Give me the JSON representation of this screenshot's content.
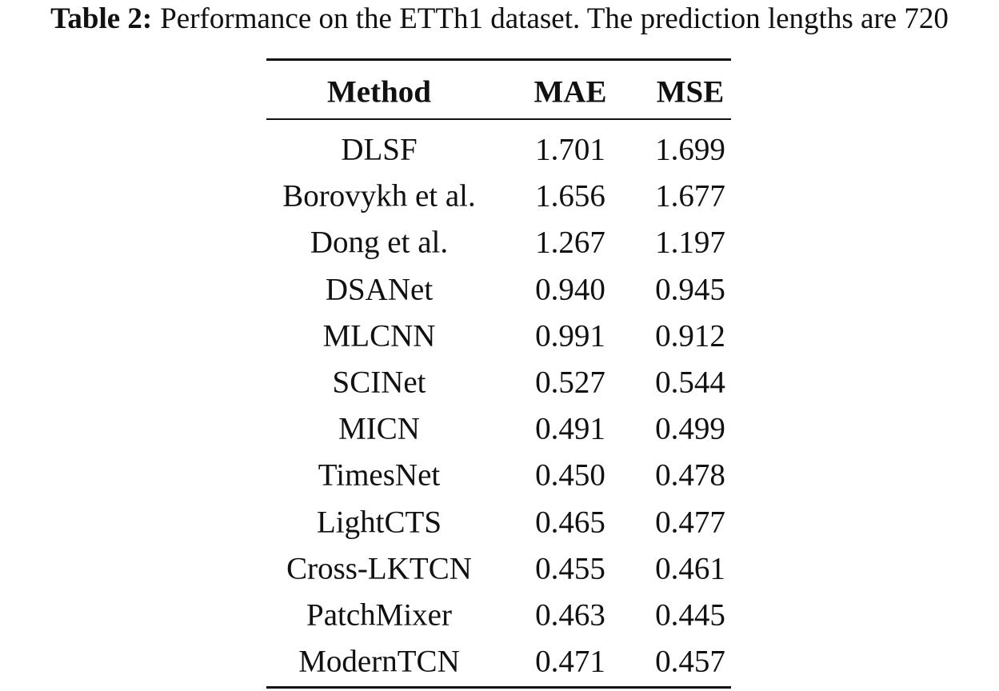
{
  "caption": {
    "label": "Table 2:",
    "text": "Performance on the ETTh1 dataset. The prediction lengths are 720"
  },
  "table": {
    "header": [
      "Method",
      "MAE",
      "MSE"
    ],
    "rows": [
      [
        "DLSF",
        "1.701",
        "1.699"
      ],
      [
        "Borovykh et al.",
        "1.656",
        "1.677"
      ],
      [
        "Dong et al.",
        "1.267",
        "1.197"
      ],
      [
        "DSANet",
        "0.940",
        "0.945"
      ],
      [
        "MLCNN",
        "0.991",
        "0.912"
      ],
      [
        "SCINet",
        "0.527",
        "0.544"
      ],
      [
        "MICN",
        "0.491",
        "0.499"
      ],
      [
        "TimesNet",
        "0.450",
        "0.478"
      ],
      [
        "LightCTS",
        "0.465",
        "0.477"
      ],
      [
        "Cross-LKTCN",
        "0.455",
        "0.461"
      ],
      [
        "PatchMixer",
        "0.463",
        "0.445"
      ],
      [
        "ModernTCN",
        "0.471",
        "0.457"
      ]
    ]
  }
}
